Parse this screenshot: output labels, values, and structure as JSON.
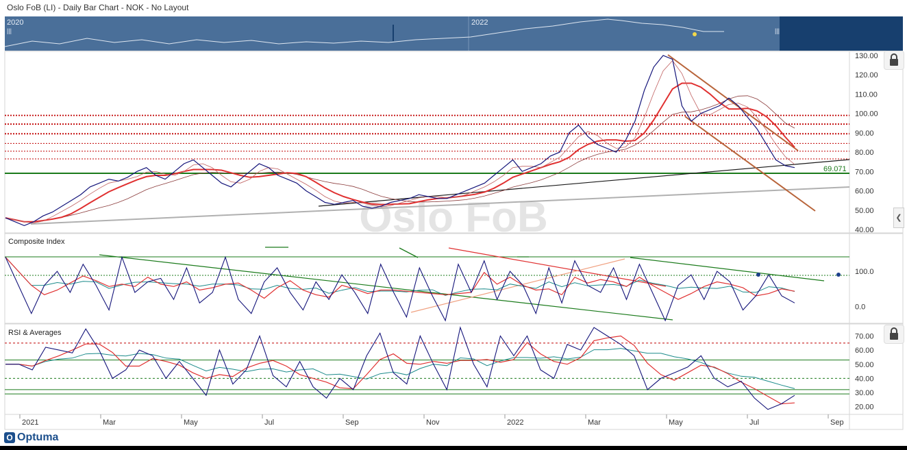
{
  "title": "Oslo FoB (LI) - Daily Bar Chart - NOK - No Layout",
  "navigator": {
    "year_labels": [
      "2020",
      "2022"
    ],
    "bg_color": "#4a6f99",
    "dark_color": "#173f6e"
  },
  "watermark": "Oslo FoB",
  "logo": "Optuma",
  "colors": {
    "price": "#14147a",
    "ma_red": "#e03030",
    "trend_green": "#1a7a1a",
    "trend_brown": "#b8643a",
    "trend_gray": "#b0b0b0",
    "hline_red": "#c00000",
    "osc_teal": "#1a8a8a"
  },
  "chart_data": [
    {
      "type": "line",
      "panel": "price",
      "title": "",
      "y_ticks": [
        "130.00",
        "120.00",
        "110.00",
        "100.00",
        "90.00",
        "80.00",
        "70.00",
        "60.00",
        "50.00",
        "40.00"
      ],
      "ylim": [
        40,
        130
      ],
      "support_level": 69.071,
      "support_label": "69.071",
      "resistance_levels": [
        99,
        94.5,
        89.5,
        84.5,
        80.5,
        76.5
      ],
      "series": [
        {
          "values": [
            46,
            44,
            42,
            44,
            47,
            49,
            52,
            55,
            58,
            62,
            64,
            66,
            65,
            67,
            70,
            72,
            68,
            66,
            70,
            74,
            76,
            72,
            68,
            64,
            62,
            66,
            70,
            74,
            72,
            68,
            66,
            64,
            60,
            57,
            54,
            53,
            54,
            55,
            52,
            51,
            52,
            54,
            55,
            56,
            58,
            57,
            56,
            56,
            58,
            60,
            62,
            64,
            68,
            72,
            76,
            70,
            72,
            74,
            78,
            80,
            90,
            94,
            88,
            84,
            82,
            80,
            86,
            96,
            112,
            124,
            130,
            128,
            104,
            96,
            100,
            102,
            104,
            108,
            104,
            98,
            92,
            84,
            76,
            73,
            72
          ]
        }
      ],
      "x_ticks": [
        "2021",
        "Mar",
        "May",
        "Jul",
        "Sep",
        "Nov",
        "2022",
        "Mar",
        "May",
        "Jul",
        "Sep"
      ]
    },
    {
      "type": "line",
      "panel": "oscillator",
      "title": "Composite Index",
      "y_ticks": [
        "100.0",
        "0.0"
      ],
      "ylim": [
        -40,
        180
      ],
      "series": [
        {
          "values": [
            140,
            60,
            -20,
            60,
            100,
            40,
            120,
            60,
            -10,
            140,
            40,
            70,
            80,
            20,
            110,
            10,
            40,
            140,
            20,
            -20,
            70,
            110,
            40,
            -10,
            70,
            20,
            90,
            40,
            -20,
            120,
            40,
            -30,
            110,
            30,
            -40,
            120,
            40,
            130,
            20,
            100,
            60,
            -20,
            110,
            10,
            130,
            60,
            40,
            110,
            20,
            120,
            40,
            -40,
            60,
            90,
            20,
            100,
            70,
            -10,
            30,
            90,
            30,
            10
          ]
        }
      ]
    },
    {
      "type": "line",
      "panel": "rsi",
      "title": "RSI & Averages",
      "y_ticks": [
        "70.00",
        "60.00",
        "50.00",
        "40.00",
        "30.00",
        "20.00"
      ],
      "ylim": [
        15,
        78
      ],
      "series": [
        {
          "values": [
            50,
            50,
            46,
            62,
            60,
            58,
            75,
            60,
            40,
            46,
            60,
            56,
            40,
            52,
            40,
            28,
            60,
            36,
            46,
            70,
            42,
            34,
            52,
            34,
            26,
            40,
            32,
            56,
            72,
            44,
            36,
            70,
            50,
            32,
            76,
            50,
            34,
            70,
            56,
            70,
            46,
            40,
            64,
            60,
            76,
            70,
            64,
            56,
            32,
            40,
            44,
            48,
            56,
            40,
            34,
            38,
            26,
            18,
            22,
            28
          ]
        }
      ]
    }
  ]
}
